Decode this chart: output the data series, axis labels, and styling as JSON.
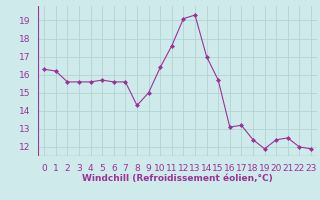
{
  "x": [
    0,
    1,
    2,
    3,
    4,
    5,
    6,
    7,
    8,
    9,
    10,
    11,
    12,
    13,
    14,
    15,
    16,
    17,
    18,
    19,
    20,
    21,
    22,
    23
  ],
  "y": [
    16.3,
    16.2,
    15.6,
    15.6,
    15.6,
    15.7,
    15.6,
    15.6,
    14.3,
    15.0,
    16.4,
    17.6,
    19.1,
    19.3,
    17.0,
    15.7,
    13.1,
    13.2,
    12.4,
    11.9,
    12.4,
    12.5,
    12.0,
    11.9
  ],
  "line_color": "#993399",
  "marker": "D",
  "marker_size": 2.0,
  "bg_color": "#ceeaea",
  "grid_color": "#aed0d0",
  "xlabel": "Windchill (Refroidissement éolien,°C)",
  "xlabel_color": "#993399",
  "tick_color": "#993399",
  "ylim": [
    11.5,
    19.8
  ],
  "xlim": [
    -0.5,
    23.5
  ],
  "yticks": [
    12,
    13,
    14,
    15,
    16,
    17,
    18,
    19
  ],
  "xticks": [
    0,
    1,
    2,
    3,
    4,
    5,
    6,
    7,
    8,
    9,
    10,
    11,
    12,
    13,
    14,
    15,
    16,
    17,
    18,
    19,
    20,
    21,
    22,
    23
  ],
  "tick_fontsize": 6.5,
  "xlabel_fontsize": 6.5
}
